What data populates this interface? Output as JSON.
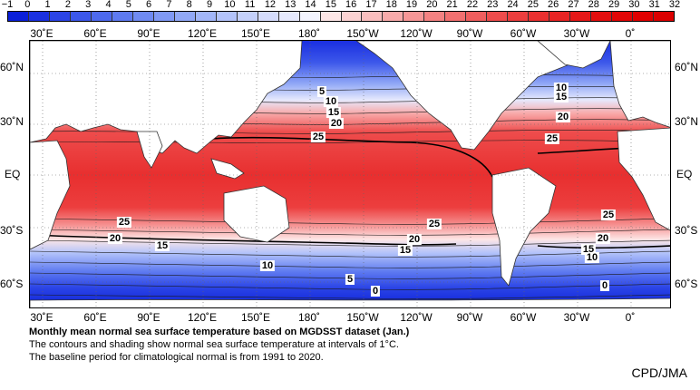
{
  "colorbar": {
    "ticks": [
      "−1",
      "0",
      "1",
      "2",
      "3",
      "4",
      "5",
      "6",
      "7",
      "8",
      "9",
      "10",
      "11",
      "12",
      "13",
      "14",
      "15",
      "16",
      "17",
      "18",
      "19",
      "20",
      "21",
      "22",
      "23",
      "24",
      "25",
      "26",
      "27",
      "28",
      "29",
      "30",
      "31",
      "32"
    ],
    "colors": [
      "#0a1fd8",
      "#1a30e0",
      "#2b44e6",
      "#3c57ea",
      "#4d69ee",
      "#5e7af0",
      "#6f8af2",
      "#8099f4",
      "#91a8f6",
      "#a2b6f8",
      "#b3c3fa",
      "#c4d0fb",
      "#d5dcfc",
      "#e6e9fd",
      "#f3f4fe",
      "#fde6e6",
      "#fcd2d2",
      "#fabebe",
      "#f8aaaa",
      "#f69696",
      "#f48282",
      "#f27070",
      "#f05e5e",
      "#ee4c4c",
      "#ec3e3e",
      "#ea3030",
      "#e82424",
      "#e61818",
      "#e40e0e",
      "#e20606",
      "#e00000",
      "#dc0000"
    ]
  },
  "lon_labels": [
    "30˚E",
    "60˚E",
    "90˚E",
    "120˚E",
    "150˚E",
    "180˚",
    "150˚W",
    "120˚W",
    "90˚W",
    "60˚W",
    "30˚W",
    "0˚"
  ],
  "lat_labels": [
    "60˚N",
    "30˚N",
    "EQ",
    "30˚S",
    "60˚S"
  ],
  "contour_labels": [
    {
      "id": "c5-north-pacific",
      "text": "5"
    },
    {
      "id": "c10-north-pacific",
      "text": "10"
    },
    {
      "id": "c15-north-pacific",
      "text": "15"
    },
    {
      "id": "c20-north-pacific",
      "text": "20"
    },
    {
      "id": "c25-north-pacific",
      "text": "25"
    },
    {
      "id": "c10-north-atlantic",
      "text": "10"
    },
    {
      "id": "c15-north-atlantic",
      "text": "15"
    },
    {
      "id": "c20-north-atlantic",
      "text": "20"
    },
    {
      "id": "c25-north-atlantic",
      "text": "25"
    },
    {
      "id": "c25-indian",
      "text": "25"
    },
    {
      "id": "c20-indian",
      "text": "20"
    },
    {
      "id": "c15-indian",
      "text": "15"
    },
    {
      "id": "c25-south-pacific",
      "text": "25"
    },
    {
      "id": "c20-south-pacific",
      "text": "20"
    },
    {
      "id": "c15-south-pacific",
      "text": "15"
    },
    {
      "id": "c10-southern",
      "text": "10"
    },
    {
      "id": "c5-southern",
      "text": "5"
    },
    {
      "id": "c0-southern",
      "text": "0"
    },
    {
      "id": "c25-south-atlantic",
      "text": "25"
    },
    {
      "id": "c20-south-atlantic",
      "text": "20"
    },
    {
      "id": "c15-south-atlantic",
      "text": "15"
    },
    {
      "id": "c10-south-atlantic",
      "text": "10"
    },
    {
      "id": "c0-south-atlantic",
      "text": "0"
    }
  ],
  "caption": {
    "title": "Monthly mean normal sea surface temperature based on MGDSST dataset (Jan.)",
    "line1": "The contours and shading show normal sea surface temperature at intervals of 1°C.",
    "line2": "The baseline period for climatological normal is from 1991 to 2020."
  },
  "credit": "CPD/JMA"
}
